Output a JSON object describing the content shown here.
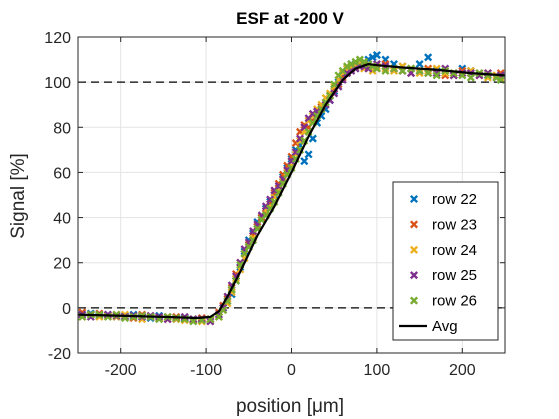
{
  "chart_data": {
    "type": "scatter",
    "title": "ESF at -200 V",
    "xlabel": "position [μm]",
    "ylabel": "Signal [%]",
    "xlim": [
      -250,
      250
    ],
    "ylim": [
      -20,
      120
    ],
    "xticks": [
      -200,
      -100,
      0,
      100,
      200
    ],
    "yticks": [
      -20,
      0,
      20,
      40,
      60,
      80,
      100,
      120
    ],
    "grid": true,
    "legend_position": "lower-right",
    "reference_lines": [
      0,
      100
    ],
    "x": [
      -245,
      -235,
      -225,
      -215,
      -205,
      -195,
      -185,
      -175,
      -165,
      -155,
      -145,
      -135,
      -125,
      -115,
      -105,
      -95,
      -85,
      -80,
      -75,
      -70,
      -65,
      -60,
      -55,
      -50,
      -45,
      -40,
      -35,
      -30,
      -25,
      -20,
      -15,
      -10,
      -5,
      0,
      5,
      10,
      15,
      20,
      25,
      30,
      35,
      40,
      45,
      50,
      55,
      60,
      65,
      70,
      75,
      80,
      85,
      90,
      95,
      100,
      110,
      120,
      130,
      140,
      150,
      160,
      170,
      180,
      190,
      200,
      210,
      220,
      230,
      240,
      245
    ],
    "series": [
      {
        "name": "row 22",
        "marker": "x",
        "color": "#0072BD",
        "values": [
          -3,
          -2.5,
          -3.5,
          -3,
          -4,
          -3.5,
          -3,
          -4,
          -4.5,
          -3.5,
          -4,
          -5,
          -4.5,
          -5,
          -5.5,
          -5,
          -3,
          0,
          3,
          6,
          12,
          18,
          25,
          30,
          33,
          38,
          40,
          44,
          47,
          50,
          53,
          58,
          62,
          66,
          70,
          72,
          65,
          68,
          75,
          82,
          85,
          88,
          92,
          96,
          100,
          103,
          106,
          108,
          108,
          107,
          109,
          110,
          111,
          112,
          110,
          108,
          107,
          106,
          108,
          111,
          105,
          104,
          103,
          106,
          105,
          104,
          103,
          102,
          101
        ]
      },
      {
        "name": "row 23",
        "marker": "x",
        "color": "#D95319",
        "values": [
          -2,
          -3,
          -2.5,
          -3.5,
          -3,
          -4,
          -4.5,
          -3,
          -4,
          -4.5,
          -5,
          -4,
          -5,
          -5.5,
          -4.5,
          -5,
          -2,
          1,
          4,
          9,
          15,
          20,
          24,
          28,
          32,
          36,
          40,
          42,
          46,
          51,
          55,
          59,
          63,
          67,
          73,
          78,
          81,
          80,
          83,
          87,
          89,
          91,
          94,
          97,
          99,
          102,
          104,
          106,
          107,
          108,
          108,
          107,
          107,
          106,
          108,
          106,
          105,
          104,
          105,
          106,
          104,
          103,
          104,
          105,
          104,
          103,
          104,
          103,
          104
        ]
      },
      {
        "name": "row 24",
        "marker": "x",
        "color": "#EDB120",
        "values": [
          -4,
          -3,
          -4,
          -3.5,
          -4,
          -3,
          -4,
          -5,
          -4,
          -4.5,
          -4,
          -5,
          -5.5,
          -5,
          -6,
          -5.5,
          -4,
          -1,
          2,
          7,
          13,
          17,
          22,
          27,
          31,
          35,
          39,
          43,
          45,
          49,
          52,
          56,
          60,
          63,
          68,
          74,
          78,
          83,
          85,
          88,
          90,
          93,
          95,
          98,
          101,
          104,
          106,
          107,
          107,
          108,
          106,
          107,
          105,
          107,
          106,
          105,
          107,
          106,
          104,
          105,
          106,
          104,
          103,
          104,
          105,
          104,
          102,
          103,
          102
        ]
      },
      {
        "name": "row 25",
        "marker": "x",
        "color": "#7E2F8E",
        "values": [
          -3,
          -4,
          -3,
          -3,
          -3.5,
          -4,
          -3.5,
          -4,
          -3.5,
          -4,
          -5,
          -4.5,
          -4,
          -5,
          -5,
          -6,
          -3,
          0,
          5,
          10,
          14,
          20,
          26,
          29,
          34,
          37,
          41,
          45,
          48,
          52,
          54,
          57,
          61,
          65,
          69,
          75,
          80,
          84,
          86,
          87,
          88,
          90,
          92,
          95,
          98,
          101,
          104,
          105,
          106,
          107,
          107,
          106,
          107,
          108,
          107,
          106,
          105,
          104,
          105,
          104,
          104,
          106,
          103,
          104,
          104,
          103,
          104,
          102,
          103
        ]
      },
      {
        "name": "row 26",
        "marker": "x",
        "color": "#77AC30",
        "values": [
          -4,
          -3,
          -3,
          -4,
          -3,
          -4.5,
          -4,
          -3.5,
          -4,
          -5,
          -4,
          -4.5,
          -5,
          -6,
          -5.5,
          -5,
          -4,
          -1,
          3,
          8,
          12,
          19,
          24,
          27,
          30,
          35,
          39,
          41,
          44,
          47,
          51,
          55,
          59,
          62,
          66,
          70,
          74,
          78,
          82,
          85,
          88,
          91,
          94,
          99,
          103,
          105,
          107,
          108,
          109,
          110,
          109,
          108,
          107,
          106,
          105,
          106,
          105,
          106,
          105,
          104,
          103,
          105,
          104,
          103,
          102,
          104,
          103,
          102,
          101
        ]
      }
    ],
    "avg_line": {
      "name": "Avg",
      "color": "#000000",
      "x": [
        -250,
        -200,
        -150,
        -110,
        -95,
        -85,
        -75,
        -60,
        -40,
        -20,
        0,
        20,
        40,
        60,
        75,
        90,
        100,
        130,
        170,
        210,
        250
      ],
      "y": [
        -3,
        -3.5,
        -4,
        -4.5,
        -4,
        -1.5,
        5,
        16,
        32,
        45,
        60,
        76,
        90,
        101,
        106,
        108,
        107.5,
        106.5,
        105.5,
        104,
        103
      ]
    }
  }
}
